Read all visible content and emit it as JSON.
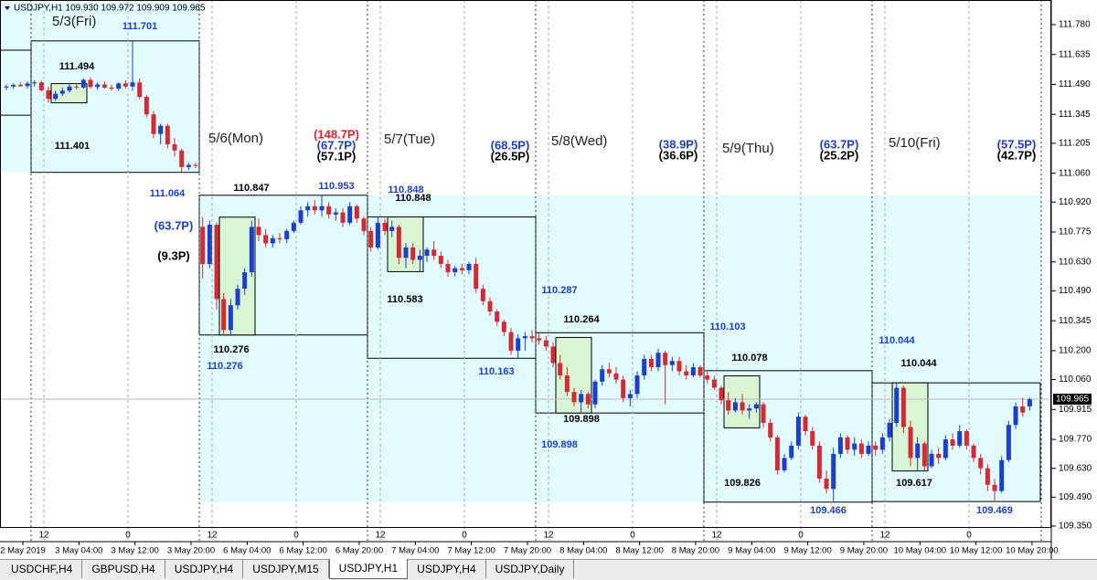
{
  "header": {
    "quote": "USDJPY,H1  109.930 109.972 109.909 109.965"
  },
  "chart_data": {
    "type": "candlestick",
    "ylim": [
      109.341,
      111.886
    ],
    "yticks": [
      {
        "value": 111.78,
        "label": "111.780"
      },
      {
        "value": 111.635,
        "label": "111.635"
      },
      {
        "value": 111.49,
        "label": "111.490"
      },
      {
        "value": 111.345,
        "label": "111.345"
      },
      {
        "value": 111.205,
        "label": "111.205"
      },
      {
        "value": 111.06,
        "label": "111.060"
      },
      {
        "value": 110.92,
        "label": "110.920"
      },
      {
        "value": 110.775,
        "label": "110.775"
      },
      {
        "value": 110.63,
        "label": "110.630"
      },
      {
        "value": 110.49,
        "label": "110.490"
      },
      {
        "value": 110.345,
        "label": "110.345"
      },
      {
        "value": 110.2,
        "label": "110.200"
      },
      {
        "value": 110.06,
        "label": "110.060"
      },
      {
        "value": 109.915,
        "label": "109.915"
      },
      {
        "value": 109.77,
        "label": "109.770"
      },
      {
        "value": 109.63,
        "label": "109.630"
      },
      {
        "value": 109.49,
        "label": "109.490"
      },
      {
        "value": 109.35,
        "label": "109.350"
      }
    ],
    "current_price": {
      "value": 109.965,
      "label": "109.965"
    },
    "up_color": "#1a3fcc",
    "down_color": "#d42a35",
    "time_labels": [
      "2 May 2019",
      "3 May 04:00",
      "3 May 12:00",
      "3 May 20:00",
      "6 May 04:00",
      "6 May 12:00",
      "6 May 20:00",
      "7 May 04:00",
      "7 May 12:00",
      "7 May 20:00",
      "8 May 04:00",
      "8 May 12:00",
      "8 May 20:00",
      "9 May 04:00",
      "9 May 12:00",
      "9 May 20:00",
      "10 May 04:00",
      "10 May 12:00",
      "10 May 20:00"
    ],
    "hour_labels": [
      "12",
      "0",
      "12",
      "0",
      "12",
      "0",
      "12",
      "0",
      "12",
      "0",
      "12",
      "0"
    ],
    "prev_box": {
      "high": 111.656,
      "low": 111.341
    },
    "days": [
      {
        "label": "5/3(Fri)",
        "high": 111.701,
        "low": 111.064,
        "open_high": 111.494,
        "open_low": 111.401,
        "pips": []
      },
      {
        "label": "5/6(Mon)",
        "high": 110.953,
        "low": 110.276,
        "open_high": 110.847,
        "open_low": 110.276,
        "pips": [
          {
            "text": "(148.7P)",
            "color": "#e0202a"
          },
          {
            "text": "(67.7P)",
            "color": "#1a3fcc"
          },
          {
            "text": "(57.1P)",
            "color": "#000000"
          }
        ],
        "side_pips": [
          {
            "text": "(63.7P)",
            "color": "#1a3fcc"
          },
          {
            "text": "(9.3P)",
            "color": "#000000"
          }
        ]
      },
      {
        "label": "5/7(Tue)",
        "high": 110.848,
        "low": 110.163,
        "open_high": 110.848,
        "open_low": 110.583,
        "pips": [
          {
            "text": "(68.5P)",
            "color": "#1a3fcc"
          },
          {
            "text": "(26.5P)",
            "color": "#000000"
          }
        ]
      },
      {
        "label": "5/8(Wed)",
        "high": 110.287,
        "low": 109.898,
        "open_high": 110.264,
        "open_low": 109.898,
        "pips": [
          {
            "text": "(38.9P)",
            "color": "#1a3fcc"
          },
          {
            "text": "(36.6P)",
            "color": "#000000"
          }
        ]
      },
      {
        "label": "5/9(Thu)",
        "high": 110.103,
        "low": 109.466,
        "open_high": 110.078,
        "open_low": 109.826,
        "pips": [
          {
            "text": "(63.7P)",
            "color": "#1a3fcc"
          },
          {
            "text": "(25.2P)",
            "color": "#000000"
          }
        ]
      },
      {
        "label": "5/10(Fri)",
        "high": 110.044,
        "low": 109.469,
        "open_high": 110.044,
        "open_low": 109.617,
        "pips": [
          {
            "text": "(57.5P)",
            "color": "#1a3fcc"
          },
          {
            "text": "(42.7P)",
            "color": "#000000"
          }
        ]
      }
    ],
    "candles": [
      [
        111.475,
        111.49,
        111.462,
        111.48
      ],
      [
        111.48,
        111.495,
        111.47,
        111.488
      ],
      [
        111.488,
        111.5,
        111.478,
        111.482
      ],
      [
        111.482,
        111.505,
        111.47,
        111.495
      ],
      [
        111.495,
        111.51,
        111.48,
        111.5
      ],
      [
        111.5,
        111.508,
        111.455,
        111.462
      ],
      [
        111.462,
        111.48,
        111.401,
        111.42
      ],
      [
        111.42,
        111.46,
        111.41,
        111.445
      ],
      [
        111.445,
        111.475,
        111.435,
        111.46
      ],
      [
        111.46,
        111.494,
        111.45,
        111.48
      ],
      [
        111.48,
        111.495,
        111.465,
        111.475
      ],
      [
        111.475,
        111.52,
        111.47,
        111.512
      ],
      [
        111.512,
        111.525,
        111.47,
        111.478
      ],
      [
        111.478,
        111.5,
        111.465,
        111.49
      ],
      [
        111.49,
        111.505,
        111.47,
        111.475
      ],
      [
        111.475,
        111.49,
        111.46,
        111.47
      ],
      [
        111.47,
        111.5,
        111.46,
        111.495
      ],
      [
        111.495,
        111.51,
        111.47,
        111.48
      ],
      [
        111.48,
        111.701,
        111.46,
        111.5
      ],
      [
        111.5,
        111.52,
        111.42,
        111.43
      ],
      [
        111.43,
        111.44,
        111.33,
        111.345
      ],
      [
        111.345,
        111.36,
        111.23,
        111.25
      ],
      [
        111.25,
        111.3,
        111.2,
        111.29
      ],
      [
        111.29,
        111.3,
        111.18,
        111.2
      ],
      [
        111.2,
        111.23,
        111.14,
        111.17
      ],
      [
        111.17,
        111.18,
        111.064,
        111.09
      ],
      [
        111.09,
        111.11,
        111.075,
        111.1
      ],
      [
        111.1,
        111.11,
        111.085,
        111.095
      ],
      [
        110.8,
        110.847,
        110.55,
        110.62
      ],
      [
        110.62,
        110.83,
        110.6,
        110.81
      ],
      [
        110.81,
        110.82,
        110.4,
        110.45
      ],
      [
        110.45,
        110.48,
        110.276,
        110.3
      ],
      [
        110.3,
        110.45,
        110.276,
        110.42
      ],
      [
        110.42,
        110.52,
        110.4,
        110.5
      ],
      [
        110.5,
        110.6,
        110.47,
        110.58
      ],
      [
        110.58,
        110.83,
        110.56,
        110.8
      ],
      [
        110.8,
        110.84,
        110.73,
        110.76
      ],
      [
        110.76,
        110.79,
        110.7,
        110.72
      ],
      [
        110.72,
        110.76,
        110.7,
        110.745
      ],
      [
        110.745,
        110.77,
        110.72,
        110.74
      ],
      [
        110.74,
        110.79,
        110.72,
        110.78
      ],
      [
        110.78,
        110.83,
        110.77,
        110.82
      ],
      [
        110.82,
        110.9,
        110.81,
        110.88
      ],
      [
        110.88,
        110.92,
        110.85,
        110.9
      ],
      [
        110.9,
        110.93,
        110.86,
        110.88
      ],
      [
        110.88,
        110.953,
        110.85,
        110.9
      ],
      [
        110.9,
        110.92,
        110.84,
        110.86
      ],
      [
        110.86,
        110.89,
        110.83,
        110.87
      ],
      [
        110.87,
        110.89,
        110.8,
        110.82
      ],
      [
        110.82,
        110.92,
        110.81,
        110.9
      ],
      [
        110.9,
        110.91,
        110.82,
        110.84
      ],
      [
        110.84,
        110.85,
        110.76,
        110.78
      ],
      [
        110.78,
        110.8,
        110.68,
        110.7
      ],
      [
        110.7,
        110.848,
        110.69,
        110.82
      ],
      [
        110.82,
        110.84,
        110.76,
        110.78
      ],
      [
        110.78,
        110.83,
        110.75,
        110.8
      ],
      [
        110.8,
        110.81,
        110.62,
        110.65
      ],
      [
        110.65,
        110.72,
        110.6,
        110.7
      ],
      [
        110.7,
        110.72,
        110.62,
        110.64
      ],
      [
        110.64,
        110.69,
        110.583,
        110.66
      ],
      [
        110.66,
        110.7,
        110.63,
        110.69
      ],
      [
        110.69,
        110.73,
        110.64,
        110.66
      ],
      [
        110.66,
        110.68,
        110.6,
        110.62
      ],
      [
        110.62,
        110.64,
        110.56,
        110.58
      ],
      [
        110.58,
        110.61,
        110.56,
        110.6
      ],
      [
        110.6,
        110.62,
        110.57,
        110.59
      ],
      [
        110.59,
        110.63,
        110.57,
        110.62
      ],
      [
        110.62,
        110.65,
        110.48,
        110.5
      ],
      [
        110.5,
        110.52,
        110.42,
        110.44
      ],
      [
        110.44,
        110.46,
        110.37,
        110.39
      ],
      [
        110.39,
        110.4,
        110.32,
        110.34
      ],
      [
        110.34,
        110.35,
        110.27,
        110.29
      ],
      [
        110.29,
        110.31,
        110.18,
        110.2
      ],
      [
        110.2,
        110.28,
        110.163,
        110.26
      ],
      [
        110.26,
        110.29,
        110.2,
        110.27
      ],
      [
        110.27,
        110.3,
        110.24,
        110.26
      ],
      [
        110.26,
        110.287,
        110.23,
        110.25
      ],
      [
        110.25,
        110.27,
        110.2,
        110.22
      ],
      [
        110.22,
        110.24,
        110.12,
        110.14
      ],
      [
        110.14,
        110.18,
        110.06,
        110.08
      ],
      [
        110.08,
        110.12,
        109.98,
        110.0
      ],
      [
        110.0,
        110.02,
        109.93,
        109.95
      ],
      [
        109.95,
        110.01,
        109.898,
        109.99
      ],
      [
        109.99,
        110.0,
        109.92,
        109.94
      ],
      [
        109.94,
        110.06,
        109.92,
        110.05
      ],
      [
        110.05,
        110.13,
        110.03,
        110.11
      ],
      [
        110.11,
        110.14,
        110.07,
        110.09
      ],
      [
        110.09,
        110.12,
        110.04,
        110.06
      ],
      [
        110.06,
        110.08,
        109.95,
        109.97
      ],
      [
        109.97,
        110.01,
        109.93,
        109.99
      ],
      [
        109.99,
        110.1,
        109.97,
        110.08
      ],
      [
        110.08,
        110.18,
        110.06,
        110.16
      ],
      [
        110.16,
        110.18,
        110.1,
        110.12
      ],
      [
        110.12,
        110.21,
        110.1,
        110.19
      ],
      [
        110.19,
        110.2,
        109.94,
        110.13
      ],
      [
        110.13,
        110.17,
        110.1,
        110.15
      ],
      [
        110.15,
        110.17,
        110.08,
        110.1
      ],
      [
        110.1,
        110.13,
        110.06,
        110.08
      ],
      [
        110.08,
        110.14,
        110.07,
        110.12
      ],
      [
        110.12,
        110.13,
        110.07,
        110.08
      ],
      [
        110.08,
        110.103,
        110.04,
        110.06
      ],
      [
        110.06,
        110.078,
        110.01,
        110.02
      ],
      [
        110.02,
        110.03,
        109.94,
        109.96
      ],
      [
        109.96,
        110.0,
        109.89,
        109.91
      ],
      [
        109.91,
        109.97,
        109.9,
        109.95
      ],
      [
        109.95,
        109.99,
        109.89,
        109.91
      ],
      [
        109.91,
        109.94,
        109.87,
        109.92
      ],
      [
        109.92,
        109.95,
        109.9,
        109.94
      ],
      [
        109.94,
        109.95,
        109.826,
        109.85
      ],
      [
        109.85,
        109.87,
        109.76,
        109.78
      ],
      [
        109.78,
        109.79,
        109.6,
        109.62
      ],
      [
        109.62,
        109.7,
        109.61,
        109.68
      ],
      [
        109.68,
        109.76,
        109.67,
        109.74
      ],
      [
        109.74,
        109.9,
        109.72,
        109.88
      ],
      [
        109.88,
        109.89,
        109.79,
        109.81
      ],
      [
        109.81,
        109.83,
        109.72,
        109.74
      ],
      [
        109.74,
        109.76,
        109.56,
        109.58
      ],
      [
        109.58,
        109.62,
        109.51,
        109.53
      ],
      [
        109.53,
        109.73,
        109.466,
        109.7
      ],
      [
        109.7,
        109.8,
        109.68,
        109.78
      ],
      [
        109.78,
        109.79,
        109.7,
        109.72
      ],
      [
        109.72,
        109.78,
        109.69,
        109.75
      ],
      [
        109.75,
        109.77,
        109.68,
        109.7
      ],
      [
        109.7,
        109.76,
        109.69,
        109.74
      ],
      [
        109.74,
        109.76,
        109.69,
        109.72
      ],
      [
        109.72,
        109.8,
        109.7,
        109.78
      ],
      [
        109.78,
        109.87,
        109.76,
        109.85
      ],
      [
        109.85,
        110.044,
        109.83,
        110.02
      ],
      [
        110.02,
        110.03,
        109.8,
        109.83
      ],
      [
        109.83,
        109.86,
        109.64,
        109.68
      ],
      [
        109.68,
        109.78,
        109.62,
        109.75
      ],
      [
        109.75,
        109.76,
        109.617,
        109.64
      ],
      [
        109.64,
        109.72,
        109.63,
        109.7
      ],
      [
        109.7,
        109.73,
        109.65,
        109.68
      ],
      [
        109.68,
        109.79,
        109.67,
        109.77
      ],
      [
        109.77,
        109.8,
        109.72,
        109.74
      ],
      [
        109.74,
        109.84,
        109.73,
        109.81
      ],
      [
        109.81,
        109.82,
        109.72,
        109.74
      ],
      [
        109.74,
        109.75,
        109.66,
        109.68
      ],
      [
        109.68,
        109.7,
        109.6,
        109.63
      ],
      [
        109.63,
        109.65,
        109.52,
        109.55
      ],
      [
        109.55,
        109.58,
        109.469,
        109.52
      ],
      [
        109.52,
        109.69,
        109.51,
        109.67
      ],
      [
        109.67,
        109.86,
        109.66,
        109.84
      ],
      [
        109.84,
        109.95,
        109.82,
        109.93
      ],
      [
        109.93,
        109.972,
        109.88,
        109.9
      ],
      [
        109.93,
        109.972,
        109.909,
        109.965
      ]
    ]
  },
  "tabs": [
    "USDCHF,H4",
    "GBPUSD,H4",
    "USDJPY,H4",
    "USDJPY,M15",
    "USDJPY,H1",
    "USDJPY,H4",
    "USDJPY,Daily"
  ],
  "active_tab": 4
}
